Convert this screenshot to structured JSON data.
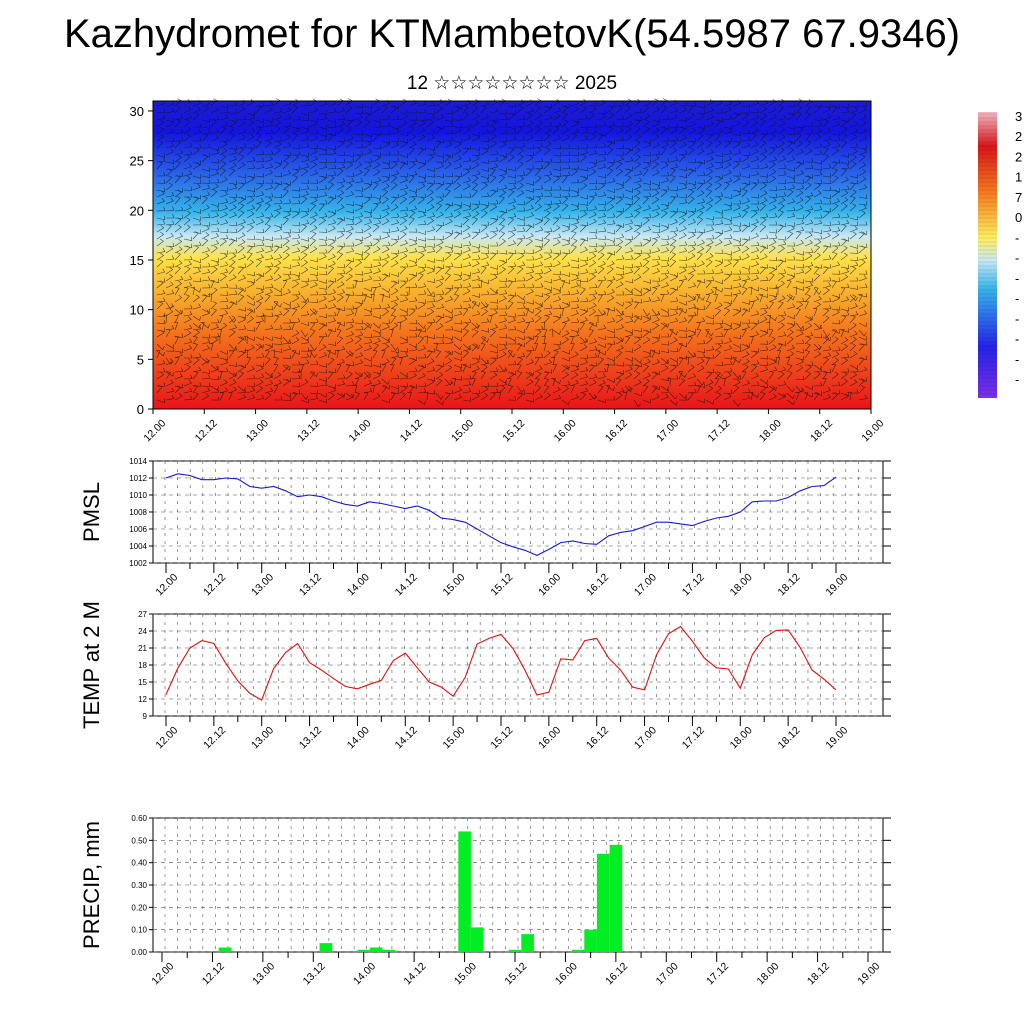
{
  "title": "Kazhydromet for KTMambetovK(54.5987 67.9346)",
  "subtitle": "12 ☆☆☆☆☆☆☆☆ 2025",
  "time_labels": [
    "12.00",
    "12.12",
    "13.00",
    "13.12",
    "14.00",
    "14.12",
    "15.00",
    "15.12",
    "16.00",
    "16.12",
    "17.00",
    "17.12",
    "18.00",
    "18.12",
    "19.00"
  ],
  "chart_data": [
    {
      "type": "heatmap",
      "description_panel": "time-height temperature with wind barbs",
      "x_ticks": [
        "12.00",
        "12.12",
        "13.00",
        "13.12",
        "14.00",
        "14.12",
        "15.00",
        "15.12",
        "16.00",
        "16.12",
        "17.00",
        "17.12",
        "18.00",
        "18.12",
        "19.00"
      ],
      "y_ticks": [
        0,
        5,
        10,
        15,
        20,
        25,
        30
      ],
      "ylim": [
        0,
        31
      ],
      "colorbar_labels": [
        "3",
        "2",
        "2",
        "1",
        "7",
        "0",
        "-",
        "-",
        "-",
        "-",
        "-",
        "-",
        "-",
        "-"
      ],
      "colors": {
        "warm": "#e8141a",
        "mid": "#ffe24a",
        "cool": "#35b4ea",
        "cold": "#1414e0"
      }
    },
    {
      "type": "line",
      "ylabel": "PMSL",
      "ylim": [
        1002,
        1014
      ],
      "y_ticks": [
        1002,
        1004,
        1006,
        1008,
        1010,
        1012,
        1014
      ],
      "color": "#1a1acc",
      "values": [
        1012,
        1012.5,
        1012.3,
        1011.8,
        1011.8,
        1012,
        1011.9,
        1011,
        1010.8,
        1011,
        1010.5,
        1009.8,
        1010,
        1009.8,
        1009.3,
        1008.9,
        1008.7,
        1009.2,
        1009,
        1008.7,
        1008.4,
        1008.7,
        1008.2,
        1007.3,
        1007.1,
        1006.8,
        1006,
        1005.2,
        1004.4,
        1003.9,
        1003.5,
        1002.9,
        1003.6,
        1004.4,
        1004.6,
        1004.3,
        1004.2,
        1005.2,
        1005.6,
        1005.8,
        1006.3,
        1006.8,
        1006.8,
        1006.6,
        1006.4,
        1006.9,
        1007.3,
        1007.5,
        1008,
        1009.2,
        1009.3,
        1009.3,
        1009.7,
        1010.5,
        1011,
        1011.1,
        1012.1
      ]
    },
    {
      "type": "line",
      "ylabel": "TEMP at 2 M",
      "ylim": [
        9,
        27
      ],
      "y_ticks": [
        9,
        12,
        15,
        18,
        21,
        24,
        27
      ],
      "color": "#dd1111",
      "values": [
        12.8,
        17.5,
        21,
        22.3,
        21.8,
        18.3,
        15.2,
        13,
        11.8,
        17.4,
        20.2,
        21.8,
        18.4,
        17.1,
        15.6,
        14.2,
        13.8,
        14.6,
        15.3,
        18.8,
        20.1,
        17.5,
        15,
        14.1,
        12.5,
        15.8,
        21.7,
        22.7,
        23.4,
        20.9,
        17.1,
        12.7,
        13.2,
        19.1,
        18.9,
        22.3,
        22.7,
        19.2,
        17.1,
        14.1,
        13.6,
        19.8,
        23.5,
        24.8,
        22.2,
        19.2,
        17.5,
        17.3,
        13.9,
        19.8,
        22.8,
        24.1,
        24.2,
        21.1,
        17.1,
        15.5,
        13.6
      ]
    },
    {
      "type": "bar",
      "ylabel": "PRECIP, mm",
      "ylim": [
        0,
        0.6
      ],
      "y_ticks": [
        "0.00",
        "0.10",
        "0.20",
        "0.30",
        "0.40",
        "0.50",
        "0.60"
      ],
      "color": "#00ee22",
      "values": [
        0,
        0,
        0,
        0,
        0,
        0.02,
        0,
        0,
        0,
        0,
        0,
        0,
        0,
        0.04,
        0,
        0,
        0.01,
        0.02,
        0.01,
        0,
        0,
        0,
        0,
        0,
        0.54,
        0.11,
        0,
        0,
        0.01,
        0.08,
        0,
        0,
        0,
        0.01,
        0.1,
        0.44,
        0.48,
        0,
        0,
        0,
        0,
        0,
        0,
        0,
        0,
        0,
        0,
        0,
        0,
        0,
        0,
        0,
        0,
        0,
        0,
        0,
        0
      ]
    }
  ]
}
